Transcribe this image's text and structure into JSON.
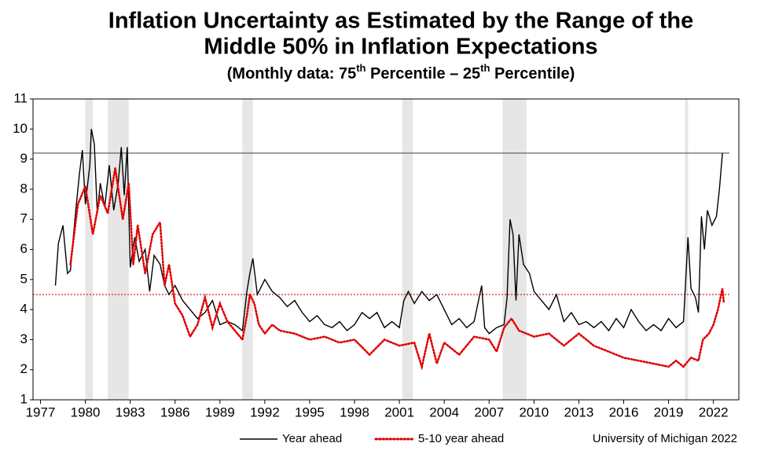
{
  "chart_data": {
    "type": "line",
    "title": [
      "Inflation Uncertainty as Estimated by the Range of the",
      "Middle 50% in Inflation Expectations"
    ],
    "subtitle": [
      "(Monthly data:  75",
      "th",
      " Percentile – 25",
      "th",
      " Percentile)"
    ],
    "source": "University of Michigan 2022",
    "xlim": [
      1976.5,
      2023.7
    ],
    "xticks": [
      1977,
      1980,
      1983,
      1986,
      1989,
      1992,
      1995,
      1998,
      2001,
      2004,
      2007,
      2010,
      2013,
      2016,
      2019,
      2022
    ],
    "ylim": [
      1,
      11
    ],
    "yticks": [
      1,
      2,
      3,
      4,
      5,
      6,
      7,
      8,
      9,
      10,
      11
    ],
    "grid": false,
    "recession_color": "#e6e6e6",
    "recessions": [
      [
        1980.0,
        1980.5
      ],
      [
        1981.5,
        1982.9
      ],
      [
        1990.5,
        1991.2
      ],
      [
        2001.2,
        2001.9
      ],
      [
        2007.9,
        2009.5
      ],
      [
        2020.1,
        2020.3
      ]
    ],
    "reference_lines": [
      {
        "value": 9.2,
        "color": "#555555",
        "dashed": false
      },
      {
        "value": 4.5,
        "color": "#e00000",
        "dashed": true
      }
    ],
    "series": [
      {
        "name": "Year ahead",
        "color": "#000000",
        "dashed": false,
        "x": [
          1978.0,
          1978.2,
          1978.5,
          1978.8,
          1979.0,
          1979.3,
          1979.6,
          1979.8,
          1980.0,
          1980.3,
          1980.4,
          1980.6,
          1980.8,
          1981.0,
          1981.3,
          1981.6,
          1981.9,
          1982.2,
          1982.4,
          1982.6,
          1982.8,
          1983.0,
          1983.3,
          1983.6,
          1984.0,
          1984.3,
          1984.6,
          1985.0,
          1985.3,
          1985.6,
          1986.0,
          1986.5,
          1987.0,
          1987.5,
          1988.0,
          1988.5,
          1989.0,
          1989.5,
          1990.0,
          1990.5,
          1990.8,
          1991.0,
          1991.2,
          1991.5,
          1992.0,
          1992.5,
          1993.0,
          1993.5,
          1994.0,
          1994.5,
          1995.0,
          1995.5,
          1996.0,
          1996.5,
          1997.0,
          1997.5,
          1998.0,
          1998.5,
          1999.0,
          1999.5,
          2000.0,
          2000.5,
          2001.0,
          2001.3,
          2001.6,
          2002.0,
          2002.5,
          2003.0,
          2003.5,
          2004.0,
          2004.5,
          2005.0,
          2005.5,
          2006.0,
          2006.5,
          2006.7,
          2007.0,
          2007.5,
          2008.0,
          2008.2,
          2008.4,
          2008.6,
          2008.8,
          2009.0,
          2009.3,
          2009.7,
          2010.0,
          2010.5,
          2011.0,
          2011.5,
          2012.0,
          2012.5,
          2013.0,
          2013.5,
          2014.0,
          2014.5,
          2015.0,
          2015.5,
          2016.0,
          2016.5,
          2017.0,
          2017.5,
          2018.0,
          2018.5,
          2019.0,
          2019.5,
          2020.0,
          2020.3,
          2020.5,
          2020.8,
          2021.0,
          2021.2,
          2021.4,
          2021.6,
          2021.9,
          2022.2,
          2022.4,
          2022.6
        ],
        "values": [
          4.8,
          6.2,
          6.8,
          5.2,
          5.3,
          7.0,
          8.5,
          9.3,
          7.5,
          8.8,
          10.0,
          9.5,
          7.2,
          8.2,
          7.4,
          8.8,
          7.3,
          8.2,
          9.4,
          7.8,
          9.4,
          5.4,
          6.4,
          5.6,
          6.0,
          4.6,
          5.8,
          5.5,
          4.8,
          4.5,
          4.8,
          4.3,
          4.0,
          3.7,
          3.9,
          4.3,
          3.5,
          3.6,
          3.5,
          3.3,
          4.6,
          5.2,
          5.7,
          4.5,
          5.0,
          4.6,
          4.4,
          4.1,
          4.3,
          3.9,
          3.6,
          3.8,
          3.5,
          3.4,
          3.6,
          3.3,
          3.5,
          3.9,
          3.7,
          3.9,
          3.4,
          3.6,
          3.4,
          4.3,
          4.6,
          4.2,
          4.6,
          4.3,
          4.5,
          4.0,
          3.5,
          3.7,
          3.4,
          3.6,
          4.8,
          3.4,
          3.2,
          3.4,
          3.5,
          4.4,
          7.0,
          6.5,
          4.3,
          6.5,
          5.5,
          5.2,
          4.6,
          4.3,
          4.0,
          4.5,
          3.6,
          3.9,
          3.5,
          3.6,
          3.4,
          3.6,
          3.3,
          3.7,
          3.4,
          4.0,
          3.6,
          3.3,
          3.5,
          3.3,
          3.7,
          3.4,
          3.6,
          6.4,
          4.7,
          4.4,
          3.9,
          7.1,
          6.0,
          7.3,
          6.8,
          7.1,
          8.0,
          9.2
        ]
      },
      {
        "name": "5-10 year ahead",
        "color": "#e00000",
        "dashed": true,
        "x": [
          1979.0,
          1979.5,
          1980.0,
          1980.5,
          1981.0,
          1981.5,
          1982.0,
          1982.5,
          1982.9,
          1983.2,
          1983.5,
          1984.0,
          1984.5,
          1985.0,
          1985.3,
          1985.6,
          1986.0,
          1986.5,
          1987.0,
          1987.5,
          1988.0,
          1988.5,
          1989.0,
          1989.5,
          1990.0,
          1990.5,
          1990.8,
          1991.0,
          1991.3,
          1991.6,
          1992.0,
          1992.5,
          1993.0,
          1994.0,
          1995.0,
          1996.0,
          1997.0,
          1998.0,
          1999.0,
          2000.0,
          2001.0,
          2002.0,
          2002.5,
          2003.0,
          2003.5,
          2004.0,
          2005.0,
          2006.0,
          2007.0,
          2007.5,
          2008.0,
          2008.5,
          2009.0,
          2010.0,
          2011.0,
          2012.0,
          2013.0,
          2014.0,
          2015.0,
          2016.0,
          2017.0,
          2018.0,
          2019.0,
          2019.5,
          2020.0,
          2020.5,
          2021.0,
          2021.3,
          2021.7,
          2022.0,
          2022.3,
          2022.6,
          2022.7
        ],
        "values": [
          5.5,
          7.5,
          8.1,
          6.5,
          7.8,
          7.2,
          8.7,
          7.0,
          8.2,
          5.5,
          6.8,
          5.2,
          6.5,
          6.9,
          4.8,
          5.5,
          4.2,
          3.8,
          3.1,
          3.5,
          4.4,
          3.4,
          4.2,
          3.6,
          3.3,
          3.0,
          3.8,
          4.5,
          4.2,
          3.5,
          3.2,
          3.5,
          3.3,
          3.2,
          3.0,
          3.1,
          2.9,
          3.0,
          2.5,
          3.0,
          2.8,
          2.9,
          2.1,
          3.2,
          2.2,
          2.9,
          2.5,
          3.1,
          3.0,
          2.6,
          3.4,
          3.7,
          3.3,
          3.1,
          3.2,
          2.8,
          3.2,
          2.8,
          2.6,
          2.4,
          2.3,
          2.2,
          2.1,
          2.3,
          2.1,
          2.4,
          2.3,
          3.0,
          3.2,
          3.5,
          4.0,
          4.7,
          4.2
        ]
      }
    ]
  }
}
